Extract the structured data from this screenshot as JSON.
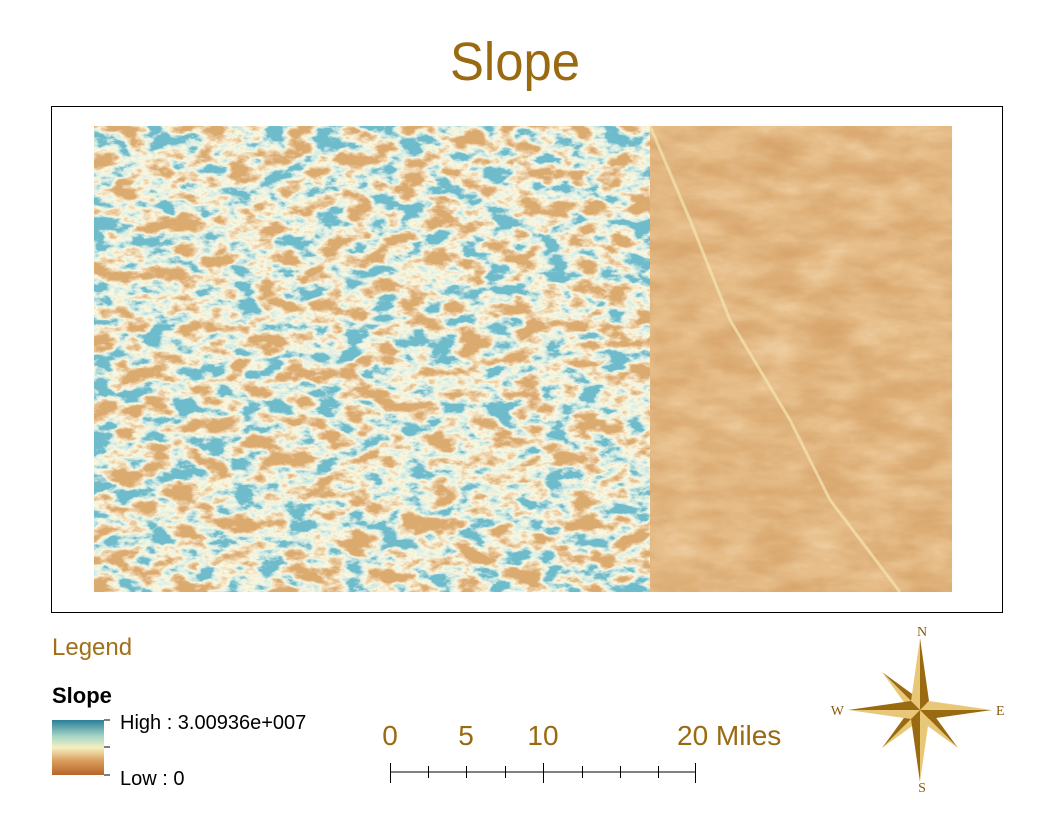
{
  "title": "Slope",
  "legend": {
    "heading": "Legend",
    "layer": "Slope",
    "high_label": "High : 3.00936e+007",
    "low_label": "Low : 0"
  },
  "scale_bar": {
    "labels": [
      "0",
      "5",
      "10",
      "20 Miles"
    ]
  },
  "north_arrow": {
    "n": "N",
    "e": "E",
    "s": "S",
    "w": "W"
  }
}
